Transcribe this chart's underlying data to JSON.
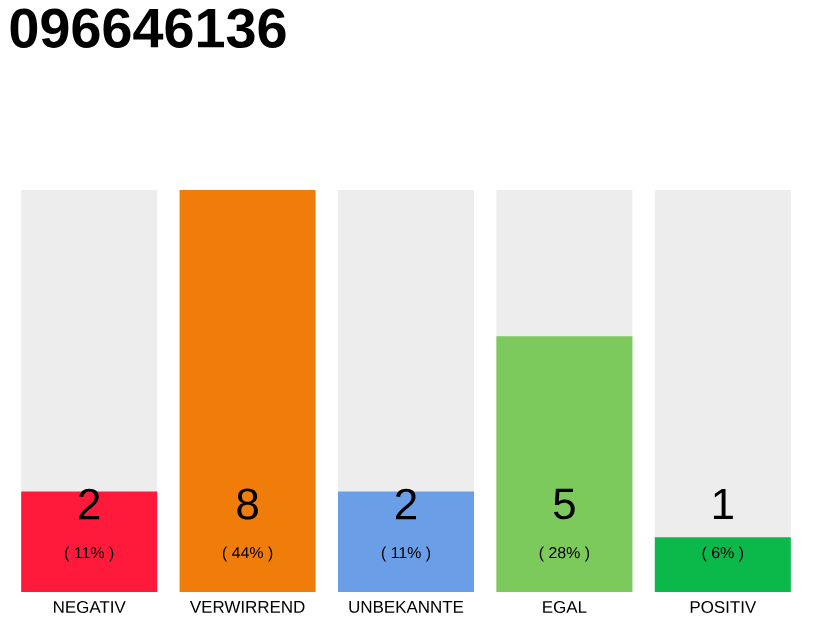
{
  "chart_data": {
    "type": "bar",
    "title": "096646136",
    "categories": [
      "NEGATIV",
      "VERWIRREND",
      "UNBEKANNTE",
      "EGAL",
      "POSITIV"
    ],
    "values": [
      11,
      44,
      11,
      28,
      6
    ],
    "colors": [
      "#ff1a3c",
      "#f07d0a",
      "#6a9fe8",
      "#7dca5c",
      "#0bb84a"
    ],
    "value_labels": [
      "( 11% )",
      "( 44% )",
      "( 11% )",
      "( 28% )",
      "( 6% )"
    ],
    "annotations": [
      "2",
      "8",
      "2",
      "5",
      "1"
    ],
    "tick_labels": "x"
  }
}
